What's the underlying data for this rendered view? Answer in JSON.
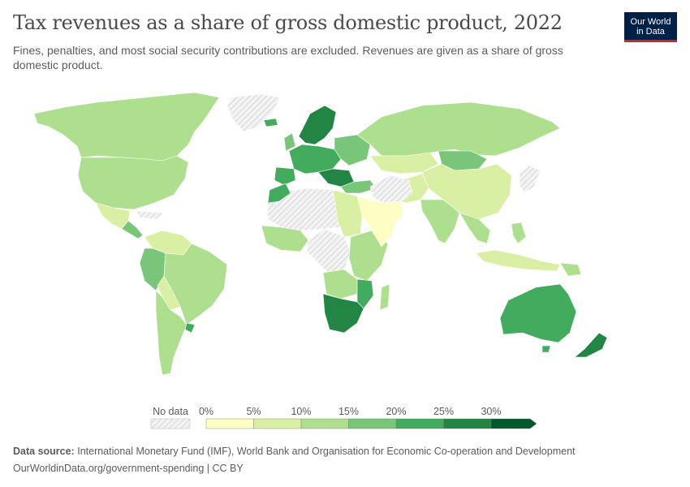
{
  "header": {
    "title": "Tax revenues as a share of gross domestic product, 2022",
    "subtitle": "Fines, penalties, and most social security contributions are excluded. Revenues are given as a share of gross domestic product."
  },
  "logo": {
    "line1": "Our World",
    "line2": "in Data"
  },
  "legend": {
    "no_data_label": "No data",
    "ticks": [
      "0%",
      "5%",
      "10%",
      "15%",
      "20%",
      "25%",
      "30%"
    ],
    "colors": [
      "#fdfdc4",
      "#d9efa3",
      "#addf8e",
      "#79c57a",
      "#42ab5d",
      "#238544",
      "#00592b"
    ]
  },
  "footer": {
    "source_label": "Data source:",
    "source_text": "International Monetary Fund (IMF), World Bank and Organisation for Economic Co-operation and Development",
    "url_line": "OurWorldinData.org/government-spending | CC BY"
  },
  "colors": {
    "no_data_fill": "#f0f0f0",
    "no_data_hatch": "#d9d9d9",
    "border": "#999999",
    "background": "#ffffff"
  }
}
